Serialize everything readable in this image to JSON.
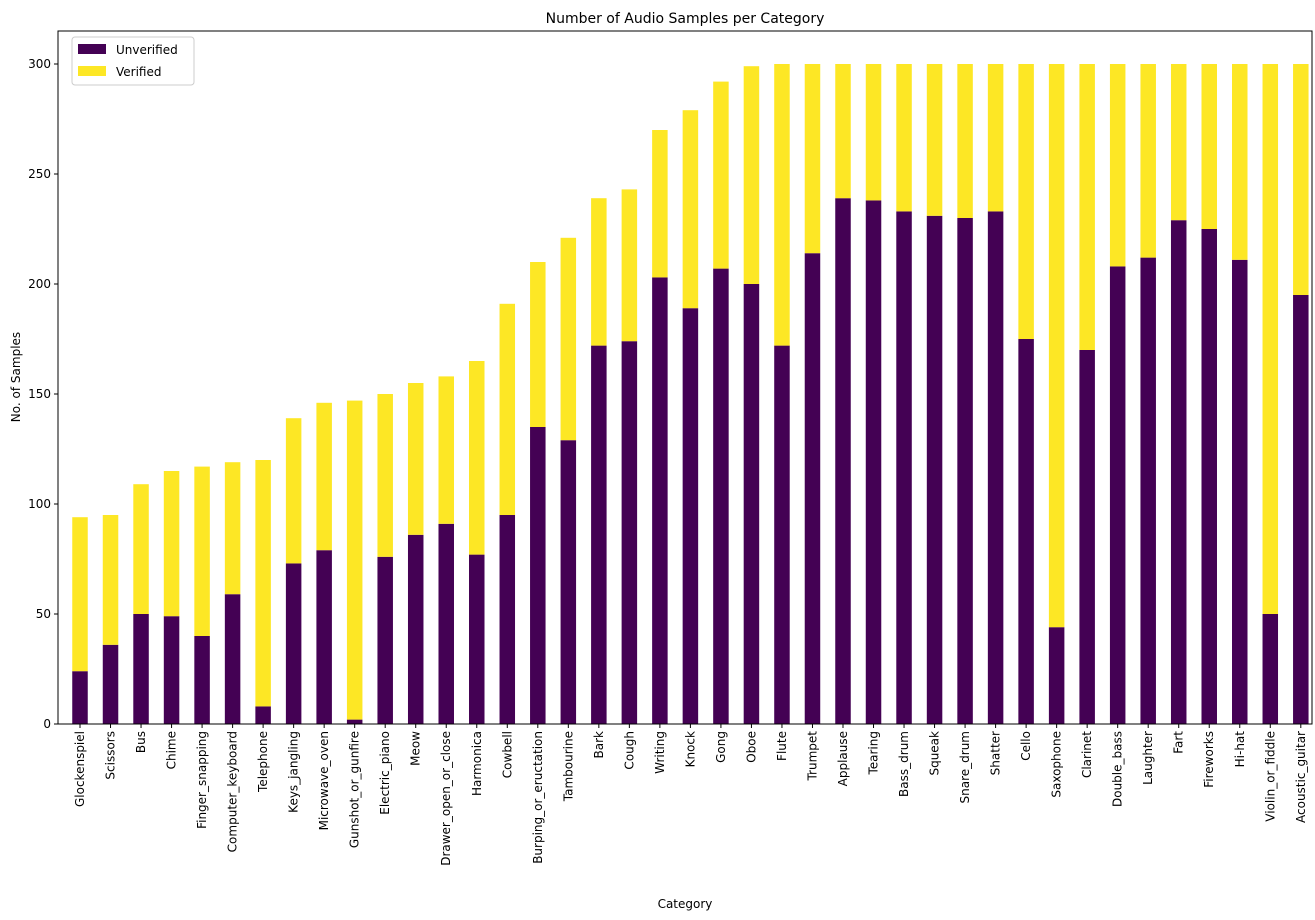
{
  "chart_data": {
    "type": "bar",
    "stacked": true,
    "title": "Number of Audio Samples per Category",
    "xlabel": "Category",
    "ylabel": "No. of Samples",
    "ylim": [
      0,
      315
    ],
    "yticks": [
      0,
      50,
      100,
      150,
      200,
      250,
      300
    ],
    "grid": false,
    "legend_position": "top-left",
    "categories": [
      "Glockenspiel",
      "Scissors",
      "Bus",
      "Chime",
      "Finger_snapping",
      "Computer_keyboard",
      "Telephone",
      "Keys_jangling",
      "Microwave_oven",
      "Gunshot_or_gunfire",
      "Electric_piano",
      "Meow",
      "Drawer_open_or_close",
      "Harmonica",
      "Cowbell",
      "Burping_or_eructation",
      "Tambourine",
      "Bark",
      "Cough",
      "Writing",
      "Knock",
      "Gong",
      "Oboe",
      "Flute",
      "Trumpet",
      "Applause",
      "Tearing",
      "Bass_drum",
      "Squeak",
      "Snare_drum",
      "Shatter",
      "Cello",
      "Saxophone",
      "Clarinet",
      "Double_bass",
      "Laughter",
      "Fart",
      "Fireworks",
      "Hi-hat",
      "Violin_or_fiddle",
      "Acoustic_guitar"
    ],
    "series": [
      {
        "name": "Unverified",
        "color": "#440154",
        "values": [
          24,
          36,
          50,
          49,
          40,
          59,
          8,
          73,
          79,
          2,
          76,
          86,
          91,
          77,
          95,
          135,
          129,
          172,
          174,
          203,
          189,
          207,
          200,
          172,
          214,
          239,
          238,
          233,
          231,
          230,
          233,
          175,
          44,
          170,
          208,
          212,
          229,
          225,
          211,
          50,
          195
        ]
      },
      {
        "name": "Verified",
        "color": "#fde725",
        "values": [
          70,
          59,
          59,
          66,
          77,
          60,
          112,
          66,
          67,
          145,
          74,
          69,
          67,
          88,
          96,
          75,
          92,
          67,
          69,
          67,
          90,
          85,
          99,
          128,
          86,
          61,
          62,
          67,
          69,
          70,
          67,
          125,
          256,
          130,
          92,
          88,
          71,
          75,
          89,
          250,
          105
        ]
      }
    ]
  }
}
